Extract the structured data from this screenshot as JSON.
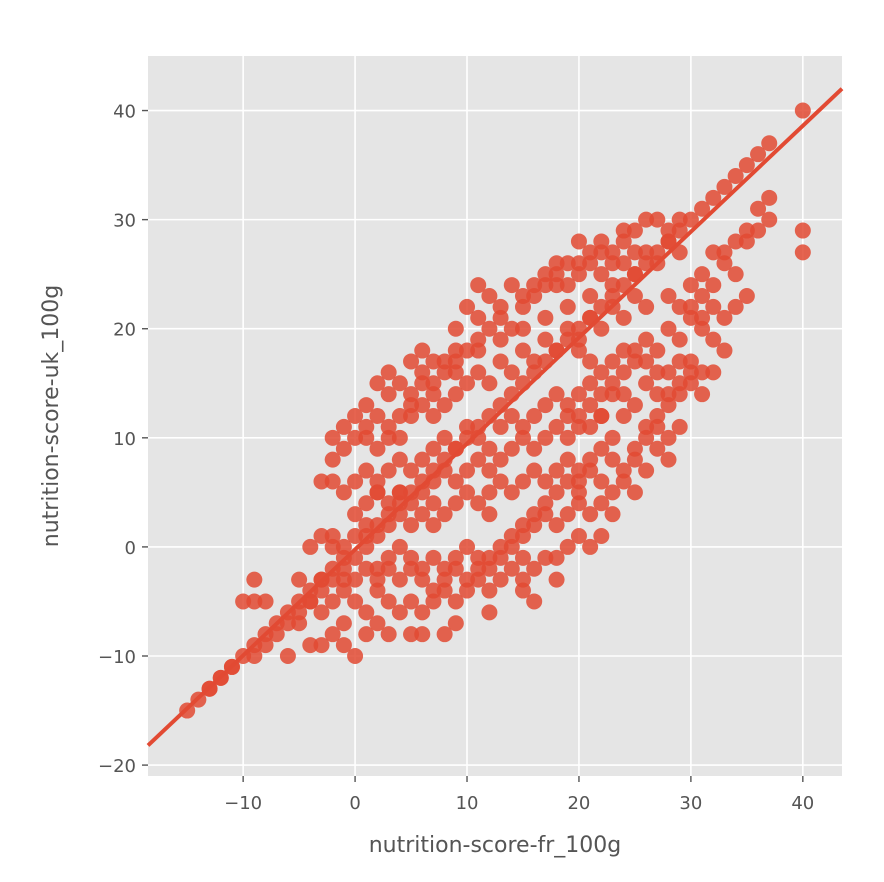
{
  "chart_data": {
    "type": "scatter",
    "title": "",
    "xlabel": "nutrition-score-fr_100g",
    "ylabel": "nutrition-score-uk_100g",
    "xlim": [
      -18.5,
      43.5
    ],
    "ylim": [
      -21,
      45
    ],
    "xticks": [
      -10,
      0,
      10,
      20,
      30,
      40
    ],
    "yticks": [
      -20,
      -10,
      0,
      10,
      20,
      30,
      40
    ],
    "xtick_labels": [
      "−10",
      "0",
      "10",
      "20",
      "30",
      "40"
    ],
    "ytick_labels": [
      "−20",
      "−10",
      "0",
      "10",
      "20",
      "30",
      "40"
    ],
    "grid": true,
    "background": "#e5e5e5",
    "grid_color": "#ffffff",
    "point_color": "#e24a33",
    "point_opacity": 0.85,
    "regression_line": {
      "x": [
        -18.5,
        43.5
      ],
      "y": [
        -18.2,
        42.0
      ],
      "color": "#e24a33"
    },
    "points": [
      [
        -15,
        -15
      ],
      [
        -14,
        -14
      ],
      [
        -13,
        -13
      ],
      [
        -12,
        -12
      ],
      [
        -11,
        -11
      ],
      [
        -10,
        -10
      ],
      [
        -9,
        -9
      ],
      [
        -8,
        -8
      ],
      [
        -7,
        -7
      ],
      [
        -6,
        -6
      ],
      [
        -5,
        -5
      ],
      [
        -4,
        -4
      ],
      [
        -3,
        -3
      ],
      [
        -2,
        -2
      ],
      [
        -1,
        -1
      ],
      [
        1,
        1
      ],
      [
        2,
        2
      ],
      [
        3,
        3
      ],
      [
        4,
        4
      ],
      [
        5,
        5
      ],
      [
        6,
        6
      ],
      [
        7,
        7
      ],
      [
        8,
        8
      ],
      [
        9,
        9
      ],
      [
        10,
        10
      ],
      [
        11,
        11
      ],
      [
        12,
        12
      ],
      [
        13,
        13
      ],
      [
        14,
        14
      ],
      [
        15,
        15
      ],
      [
        16,
        16
      ],
      [
        17,
        17
      ],
      [
        18,
        18
      ],
      [
        19,
        19
      ],
      [
        20,
        20
      ],
      [
        21,
        21
      ],
      [
        22,
        22
      ],
      [
        23,
        23
      ],
      [
        24,
        24
      ],
      [
        25,
        25
      ],
      [
        26,
        26
      ],
      [
        27,
        27
      ],
      [
        28,
        28
      ],
      [
        29,
        29
      ],
      [
        30,
        30
      ],
      [
        31,
        31
      ],
      [
        32,
        32
      ],
      [
        33,
        33
      ],
      [
        34,
        34
      ],
      [
        35,
        35
      ],
      [
        36,
        36
      ],
      [
        37,
        37
      ],
      [
        40,
        40
      ],
      [
        -10,
        -5
      ],
      [
        -9,
        -5
      ],
      [
        -9,
        -3
      ],
      [
        -8,
        -5
      ],
      [
        -6,
        -10
      ],
      [
        -9,
        -10
      ],
      [
        -5,
        -7
      ],
      [
        -4,
        -9
      ],
      [
        -3,
        -9
      ],
      [
        -2,
        -8
      ],
      [
        -1,
        -7
      ],
      [
        0,
        -10
      ],
      [
        -1,
        -9
      ],
      [
        1,
        -8
      ],
      [
        2,
        -7
      ],
      [
        3,
        -8
      ],
      [
        5,
        -8
      ],
      [
        6,
        -8
      ],
      [
        8,
        -8
      ],
      [
        9,
        -7
      ],
      [
        12,
        -6
      ],
      [
        16,
        -5
      ],
      [
        15,
        -4
      ],
      [
        -5,
        -3
      ],
      [
        -4,
        -5
      ],
      [
        -3,
        -6
      ],
      [
        -2,
        -3
      ],
      [
        -1,
        -4
      ],
      [
        0,
        -5
      ],
      [
        1,
        -6
      ],
      [
        2,
        -4
      ],
      [
        3,
        -5
      ],
      [
        4,
        -6
      ],
      [
        5,
        -5
      ],
      [
        6,
        -6
      ],
      [
        7,
        -5
      ],
      [
        8,
        -4
      ],
      [
        9,
        -5
      ],
      [
        10,
        -4
      ],
      [
        11,
        -3
      ],
      [
        12,
        -4
      ],
      [
        13,
        -3
      ],
      [
        14,
        -2
      ],
      [
        15,
        -1
      ],
      [
        16,
        -2
      ],
      [
        17,
        -1
      ],
      [
        18,
        -1
      ],
      [
        19,
        0
      ],
      [
        20,
        1
      ],
      [
        21,
        0
      ],
      [
        22,
        1
      ],
      [
        -3,
        1
      ],
      [
        -2,
        0
      ],
      [
        -1,
        -2
      ],
      [
        0,
        -1
      ],
      [
        1,
        0
      ],
      [
        2,
        -2
      ],
      [
        3,
        -1
      ],
      [
        4,
        0
      ],
      [
        5,
        -1
      ],
      [
        6,
        -2
      ],
      [
        7,
        -1
      ],
      [
        8,
        -2
      ],
      [
        9,
        -1
      ],
      [
        10,
        0
      ],
      [
        11,
        -1
      ],
      [
        12,
        -2
      ],
      [
        13,
        -1
      ],
      [
        14,
        0
      ],
      [
        15,
        1
      ],
      [
        16,
        2
      ],
      [
        17,
        3
      ],
      [
        18,
        2
      ],
      [
        19,
        3
      ],
      [
        20,
        4
      ],
      [
        21,
        3
      ],
      [
        22,
        4
      ],
      [
        23,
        3
      ],
      [
        -4,
        0
      ],
      [
        -3,
        -3
      ],
      [
        -2,
        1
      ],
      [
        -1,
        0
      ],
      [
        0,
        1
      ],
      [
        1,
        2
      ],
      [
        2,
        1
      ],
      [
        3,
        2
      ],
      [
        4,
        3
      ],
      [
        5,
        2
      ],
      [
        6,
        3
      ],
      [
        7,
        2
      ],
      [
        8,
        3
      ],
      [
        9,
        4
      ],
      [
        10,
        5
      ],
      [
        11,
        4
      ],
      [
        12,
        5
      ],
      [
        13,
        6
      ],
      [
        14,
        5
      ],
      [
        15,
        6
      ],
      [
        16,
        7
      ],
      [
        17,
        6
      ],
      [
        18,
        7
      ],
      [
        19,
        8
      ],
      [
        20,
        7
      ],
      [
        21,
        8
      ],
      [
        22,
        9
      ],
      [
        23,
        8
      ],
      [
        24,
        7
      ],
      [
        25,
        5
      ],
      [
        0,
        3
      ],
      [
        1,
        4
      ],
      [
        2,
        5
      ],
      [
        3,
        4
      ],
      [
        4,
        5
      ],
      [
        5,
        4
      ],
      [
        6,
        5
      ],
      [
        7,
        6
      ],
      [
        8,
        7
      ],
      [
        9,
        6
      ],
      [
        10,
        7
      ],
      [
        11,
        8
      ],
      [
        12,
        7
      ],
      [
        13,
        8
      ],
      [
        14,
        9
      ],
      [
        15,
        10
      ],
      [
        16,
        9
      ],
      [
        17,
        10
      ],
      [
        18,
        11
      ],
      [
        19,
        10
      ],
      [
        20,
        12
      ],
      [
        21,
        11
      ],
      [
        22,
        12
      ],
      [
        23,
        10
      ],
      [
        24,
        12
      ],
      [
        25,
        9
      ],
      [
        26,
        11
      ],
      [
        27,
        12
      ],
      [
        28,
        10
      ],
      [
        -1,
        5
      ],
      [
        0,
        6
      ],
      [
        1,
        7
      ],
      [
        2,
        6
      ],
      [
        3,
        7
      ],
      [
        4,
        8
      ],
      [
        5,
        7
      ],
      [
        6,
        8
      ],
      [
        7,
        9
      ],
      [
        8,
        10
      ],
      [
        9,
        9
      ],
      [
        10,
        11
      ],
      [
        11,
        10
      ],
      [
        12,
        9
      ],
      [
        13,
        11
      ],
      [
        14,
        12
      ],
      [
        15,
        11
      ],
      [
        16,
        12
      ],
      [
        17,
        13
      ],
      [
        18,
        14
      ],
      [
        19,
        13
      ],
      [
        20,
        14
      ],
      [
        21,
        15
      ],
      [
        22,
        14
      ],
      [
        23,
        15
      ],
      [
        24,
        14
      ],
      [
        25,
        13
      ],
      [
        26,
        15
      ],
      [
        27,
        14
      ],
      [
        28,
        13
      ],
      [
        29,
        15
      ],
      [
        30,
        16
      ],
      [
        -3,
        6
      ],
      [
        -2,
        6
      ],
      [
        2,
        5
      ],
      [
        4,
        5
      ],
      [
        7,
        4
      ],
      [
        12,
        3
      ],
      [
        15,
        -3
      ],
      [
        18,
        -3
      ],
      [
        20,
        5
      ],
      [
        22,
        6
      ],
      [
        24,
        6
      ],
      [
        26,
        7
      ],
      [
        27,
        9
      ],
      [
        28,
        8
      ],
      [
        29,
        11
      ],
      [
        -2,
        10
      ],
      [
        -1,
        9
      ],
      [
        0,
        10
      ],
      [
        1,
        11
      ],
      [
        2,
        12
      ],
      [
        3,
        11
      ],
      [
        4,
        10
      ],
      [
        5,
        12
      ],
      [
        6,
        13
      ],
      [
        7,
        12
      ],
      [
        8,
        13
      ],
      [
        9,
        14
      ],
      [
        10,
        15
      ],
      [
        11,
        16
      ],
      [
        12,
        15
      ],
      [
        13,
        17
      ],
      [
        14,
        16
      ],
      [
        15,
        18
      ],
      [
        16,
        17
      ],
      [
        17,
        19
      ],
      [
        18,
        18
      ],
      [
        19,
        20
      ],
      [
        20,
        19
      ],
      [
        21,
        21
      ],
      [
        22,
        20
      ],
      [
        23,
        22
      ],
      [
        24,
        21
      ],
      [
        25,
        23
      ],
      [
        26,
        22
      ],
      [
        -2,
        8
      ],
      [
        -1,
        11
      ],
      [
        0,
        12
      ],
      [
        1,
        10
      ],
      [
        2,
        9
      ],
      [
        3,
        10
      ],
      [
        4,
        12
      ],
      [
        5,
        13
      ],
      [
        6,
        15
      ],
      [
        7,
        14
      ],
      [
        8,
        16
      ],
      [
        9,
        17
      ],
      [
        10,
        18
      ],
      [
        11,
        19
      ],
      [
        12,
        20
      ],
      [
        13,
        21
      ],
      [
        14,
        20
      ],
      [
        15,
        22
      ],
      [
        16,
        23
      ],
      [
        17,
        24
      ],
      [
        18,
        25
      ],
      [
        19,
        26
      ],
      [
        20,
        25
      ],
      [
        21,
        27
      ],
      [
        22,
        28
      ],
      [
        23,
        27
      ],
      [
        24,
        28
      ],
      [
        25,
        29
      ],
      [
        26,
        30
      ],
      [
        27,
        30
      ],
      [
        28,
        29
      ],
      [
        29,
        30
      ],
      [
        3,
        14
      ],
      [
        4,
        15
      ],
      [
        5,
        17
      ],
      [
        6,
        16
      ],
      [
        6,
        18
      ],
      [
        7,
        15
      ],
      [
        8,
        17
      ],
      [
        9,
        18
      ],
      [
        9,
        20
      ],
      [
        10,
        22
      ],
      [
        11,
        21
      ],
      [
        11,
        24
      ],
      [
        12,
        23
      ],
      [
        13,
        22
      ],
      [
        14,
        24
      ],
      [
        15,
        23
      ],
      [
        16,
        24
      ],
      [
        17,
        25
      ],
      [
        18,
        26
      ],
      [
        19,
        24
      ],
      [
        20,
        28
      ],
      [
        21,
        26
      ],
      [
        22,
        27
      ],
      [
        23,
        26
      ],
      [
        24,
        29
      ],
      [
        25,
        27
      ],
      [
        1,
        13
      ],
      [
        2,
        15
      ],
      [
        3,
        16
      ],
      [
        5,
        14
      ],
      [
        7,
        17
      ],
      [
        9,
        16
      ],
      [
        11,
        18
      ],
      [
        13,
        19
      ],
      [
        15,
        20
      ],
      [
        17,
        21
      ],
      [
        19,
        22
      ],
      [
        21,
        23
      ],
      [
        23,
        24
      ],
      [
        25,
        25
      ],
      [
        27,
        26
      ],
      [
        29,
        27
      ],
      [
        18,
        24
      ],
      [
        20,
        26
      ],
      [
        22,
        25
      ],
      [
        24,
        26
      ],
      [
        26,
        27
      ],
      [
        28,
        28
      ],
      [
        20,
        18
      ],
      [
        21,
        17
      ],
      [
        22,
        16
      ],
      [
        23,
        17
      ],
      [
        24,
        18
      ],
      [
        25,
        17
      ],
      [
        26,
        19
      ],
      [
        27,
        18
      ],
      [
        28,
        20
      ],
      [
        29,
        19
      ],
      [
        30,
        21
      ],
      [
        31,
        20
      ],
      [
        32,
        19
      ],
      [
        33,
        18
      ],
      [
        29,
        17
      ],
      [
        30,
        15
      ],
      [
        31,
        14
      ],
      [
        32,
        16
      ],
      [
        28,
        16
      ],
      [
        27,
        16
      ],
      [
        26,
        17
      ],
      [
        25,
        18
      ],
      [
        24,
        16
      ],
      [
        23,
        14
      ],
      [
        22,
        12
      ],
      [
        21,
        13
      ],
      [
        20,
        11
      ],
      [
        19,
        12
      ],
      [
        28,
        23
      ],
      [
        29,
        22
      ],
      [
        30,
        24
      ],
      [
        31,
        25
      ],
      [
        32,
        27
      ],
      [
        33,
        26
      ],
      [
        34,
        25
      ],
      [
        35,
        28
      ],
      [
        36,
        29
      ],
      [
        37,
        30
      ],
      [
        33,
        27
      ],
      [
        34,
        28
      ],
      [
        35,
        29
      ],
      [
        36,
        31
      ],
      [
        37,
        32
      ],
      [
        31,
        21
      ],
      [
        32,
        22
      ],
      [
        33,
        21
      ],
      [
        34,
        22
      ],
      [
        35,
        23
      ],
      [
        32,
        24
      ],
      [
        30,
        22
      ],
      [
        31,
        23
      ],
      [
        40,
        29
      ],
      [
        40,
        27
      ],
      [
        30,
        17
      ],
      [
        31,
        16
      ],
      [
        29,
        14
      ],
      [
        28,
        14
      ],
      [
        27,
        11
      ],
      [
        26,
        10
      ],
      [
        25,
        8
      ],
      [
        23,
        5
      ],
      [
        -11,
        -11
      ],
      [
        -12,
        -12
      ],
      [
        -13,
        -13
      ],
      [
        -8,
        -9
      ],
      [
        -7,
        -8
      ],
      [
        -6,
        -7
      ],
      [
        -5,
        -6
      ],
      [
        -4,
        -5
      ],
      [
        -3,
        -4
      ],
      [
        -2,
        -5
      ],
      [
        -1,
        -3
      ],
      [
        0,
        -3
      ],
      [
        1,
        -2
      ],
      [
        2,
        -3
      ],
      [
        3,
        -2
      ],
      [
        4,
        -3
      ],
      [
        5,
        -2
      ],
      [
        6,
        -3
      ],
      [
        7,
        -4
      ],
      [
        8,
        -3
      ],
      [
        9,
        -2
      ],
      [
        10,
        -3
      ],
      [
        11,
        -2
      ],
      [
        12,
        -1
      ],
      [
        13,
        0
      ],
      [
        14,
        1
      ],
      [
        15,
        2
      ],
      [
        16,
        3
      ],
      [
        17,
        4
      ],
      [
        18,
        5
      ],
      [
        19,
        6
      ],
      [
        20,
        6
      ],
      [
        21,
        7
      ]
    ]
  }
}
